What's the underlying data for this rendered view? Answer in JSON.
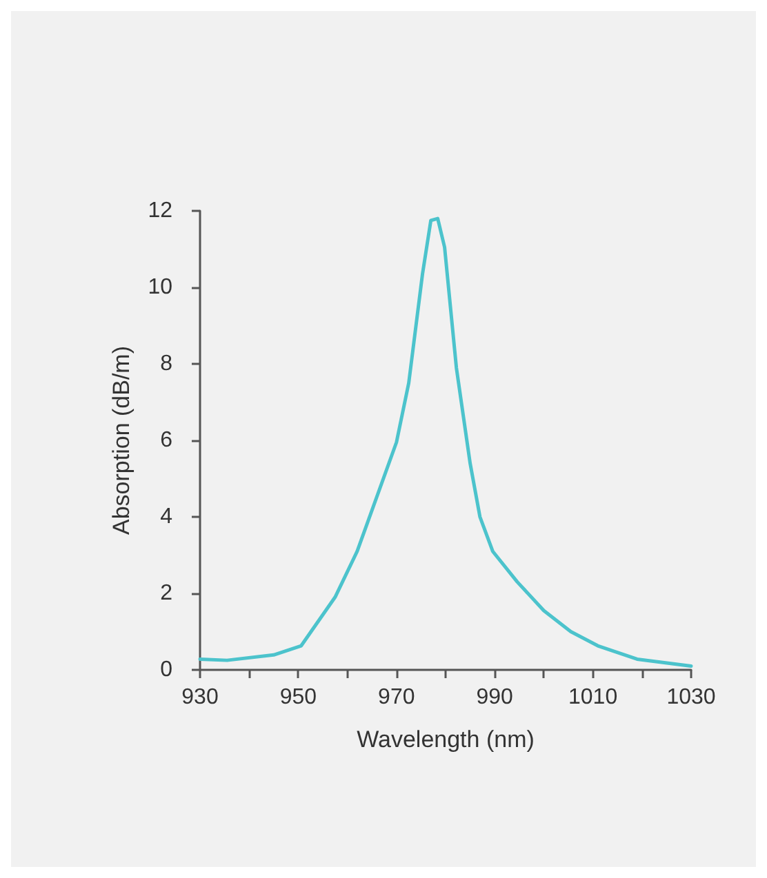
{
  "chart_data": {
    "type": "line",
    "xlabel": "Wavelength (nm)",
    "ylabel": "Absorption (dB/m)",
    "x": [
      930,
      935.5,
      945,
      950.6,
      957.5,
      962,
      970,
      972.5,
      975.3,
      977,
      978.4,
      979.8,
      982.2,
      985,
      987,
      989.6,
      994.6,
      1000,
      1005.5,
      1011,
      1019,
      1030
    ],
    "series": [
      {
        "color": "#4cc3cc",
        "values": [
          0.28,
          0.25,
          0.39,
          0.63,
          1.9,
          3.1,
          5.95,
          7.5,
          10.35,
          11.75,
          11.8,
          11.05,
          7.9,
          5.4,
          4.0,
          3.1,
          2.3,
          1.55,
          1.0,
          0.63,
          0.28,
          0.1
        ]
      }
    ],
    "xlim": [
      930,
      1030
    ],
    "ylim": [
      0,
      12
    ],
    "xticks": [
      930,
      {
        "value": 940,
        "label": null
      },
      950,
      {
        "value": 960,
        "label": null
      },
      970,
      {
        "value": 980,
        "label": null
      },
      990,
      {
        "value": 1000,
        "label": null
      },
      1010,
      {
        "value": 1020,
        "label": null
      },
      1030
    ],
    "yticks": [
      0,
      2,
      4,
      6,
      8,
      10,
      12
    ],
    "grid": false,
    "marker": "none",
    "line_style": "solid"
  }
}
